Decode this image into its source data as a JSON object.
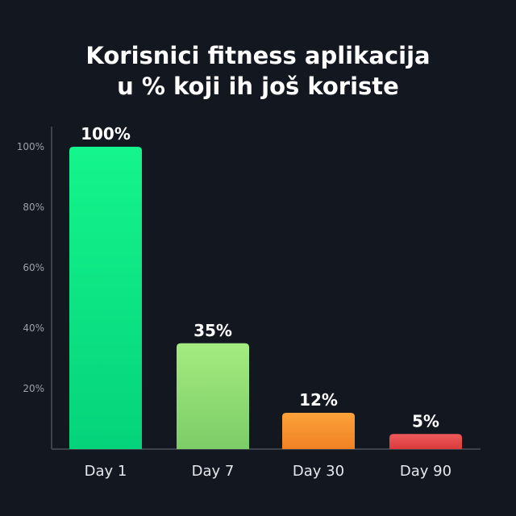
{
  "chart_data": {
    "type": "bar",
    "title": [
      "Korisnici fitness aplikacija",
      "u % koji ih još koriste"
    ],
    "categories": [
      "Day 1",
      "Day 7",
      "Day 30",
      "Day 90"
    ],
    "values": [
      100,
      35,
      12,
      5
    ],
    "data_labels": [
      "100%",
      "35%",
      "12%",
      "5%"
    ],
    "yticks": [
      20,
      40,
      60,
      80,
      100
    ],
    "ytick_labels": [
      "20%",
      "40%",
      "60%",
      "80%",
      "100%"
    ],
    "ylim": [
      0,
      100
    ],
    "xlabel": "",
    "ylabel": "",
    "grid": false,
    "colors": [
      [
        "#14f58c",
        "#05d37b"
      ],
      [
        "#a4ec80",
        "#7ccc67"
      ],
      [
        "#fca23a",
        "#ef8124"
      ],
      [
        "#f05a5a",
        "#d93a3c"
      ]
    ],
    "background": "#131820"
  }
}
